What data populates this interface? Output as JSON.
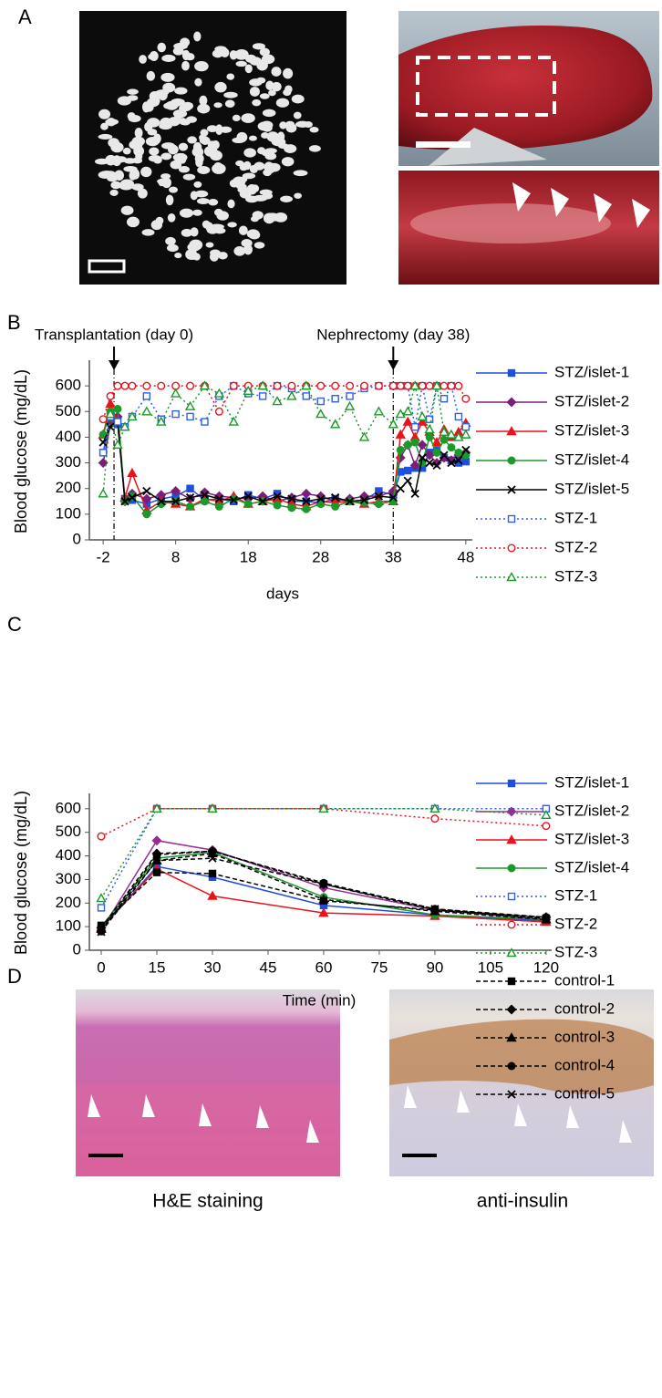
{
  "panel_labels": [
    "A",
    "B",
    "C",
    "D"
  ],
  "captions": [
    "H&E staining",
    "anti-insulin"
  ],
  "chart_data": [
    {
      "type": "line",
      "x_label": "days",
      "y_label": "Blood glucose (mg/dL)",
      "xlim": [
        -3.9,
        48.9
      ],
      "ylim": [
        0,
        700
      ],
      "xticks": [
        -2,
        8,
        18,
        28,
        38,
        48
      ],
      "yticks": [
        0,
        100,
        200,
        300,
        400,
        500,
        600
      ],
      "annotations": [
        {
          "text": "Transplantation (day 0)",
          "x": -0.5
        },
        {
          "text": "Nephrectomy (day 38)",
          "x": 38
        }
      ],
      "x": [
        -2,
        -1,
        0,
        1,
        2,
        4,
        6,
        8,
        10,
        12,
        14,
        16,
        18,
        20,
        22,
        24,
        26,
        28,
        30,
        32,
        34,
        36,
        38,
        39,
        40,
        41,
        42,
        43,
        44,
        45,
        46,
        47,
        48
      ],
      "series": [
        {
          "name": "STZ/islet-1",
          "color": "#1f4fe0",
          "line_style": "solid",
          "marker": "square",
          "open": false,
          "values": [
            340,
            470,
            450,
            160,
            155,
            140,
            160,
            170,
            200,
            155,
            160,
            150,
            175,
            160,
            180,
            150,
            150,
            145,
            160,
            150,
            155,
            190,
            175,
            265,
            270,
            280,
            280,
            340,
            350,
            320,
            310,
            300,
            305
          ]
        },
        {
          "name": "STZ/islet-2",
          "color": "#7b1e7a",
          "line_style": "solid",
          "marker": "diamond",
          "open": false,
          "values": [
            300,
            450,
            480,
            150,
            180,
            160,
            175,
            190,
            160,
            185,
            170,
            165,
            160,
            170,
            150,
            165,
            180,
            170,
            150,
            160,
            170,
            170,
            190,
            320,
            370,
            290,
            370,
            330,
            300,
            320,
            310,
            330,
            340
          ]
        },
        {
          "name": "STZ/islet-3",
          "color": "#e8141c",
          "line_style": "solid",
          "marker": "triangle",
          "open": false,
          "values": [
            410,
            530,
            460,
            165,
            260,
            115,
            150,
            140,
            130,
            160,
            150,
            170,
            140,
            150,
            160,
            140,
            130,
            150,
            145,
            150,
            140,
            150,
            150,
            410,
            460,
            400,
            460,
            420,
            380,
            430,
            400,
            420,
            455
          ]
        },
        {
          "name": "STZ/islet-4",
          "color": "#1a9a2a",
          "line_style": "solid",
          "marker": "circle",
          "open": false,
          "values": [
            410,
            500,
            510,
            150,
            170,
            100,
            140,
            150,
            130,
            150,
            130,
            160,
            140,
            150,
            135,
            125,
            120,
            140,
            130,
            150,
            145,
            140,
            150,
            350,
            370,
            380,
            300,
            400,
            340,
            390,
            360,
            340,
            330
          ]
        },
        {
          "name": "STZ/islet-5",
          "color": "#000000",
          "line_style": "solid",
          "marker": "x",
          "open": false,
          "values": [
            380,
            440,
            460,
            150,
            165,
            190,
            150,
            150,
            165,
            175,
            160,
            155,
            170,
            150,
            170,
            160,
            150,
            160,
            165,
            150,
            155,
            170,
            165,
            200,
            230,
            180,
            320,
            300,
            290,
            330,
            300,
            310,
            350
          ]
        },
        {
          "name": "STZ-1",
          "color": "#2f5fe8",
          "line_style": "dotted",
          "marker": "square",
          "open": true,
          "values": [
            340,
            480,
            460,
            440,
            480,
            560,
            470,
            490,
            480,
            460,
            560,
            600,
            570,
            560,
            600,
            590,
            560,
            540,
            550,
            560,
            590,
            600,
            600,
            600,
            600,
            440,
            600,
            470,
            600,
            550,
            600,
            480,
            440
          ]
        },
        {
          "name": "STZ-2",
          "color": "#e8141c",
          "line_style": "dotted",
          "marker": "circle",
          "open": true,
          "values": [
            470,
            560,
            600,
            600,
            600,
            600,
            600,
            600,
            600,
            600,
            500,
            600,
            600,
            600,
            600,
            600,
            600,
            600,
            600,
            600,
            600,
            600,
            600,
            600,
            600,
            600,
            600,
            600,
            600,
            600,
            600,
            600,
            550
          ]
        },
        {
          "name": "STZ-3",
          "color": "#1a9a2a",
          "line_style": "dotted",
          "marker": "triangle",
          "open": true,
          "values": [
            180,
            490,
            370,
            440,
            480,
            500,
            460,
            570,
            520,
            600,
            570,
            460,
            580,
            600,
            540,
            560,
            600,
            490,
            450,
            520,
            400,
            500,
            450,
            490,
            500,
            600,
            480,
            430,
            600,
            420,
            410,
            400,
            410
          ]
        }
      ]
    },
    {
      "type": "line",
      "x_label": "Time (min)",
      "y_label": "Blood glucose (mg/dL)",
      "xlim": [
        -3.2,
        121.5
      ],
      "ylim": [
        0,
        665
      ],
      "xticks": [
        0,
        15,
        30,
        45,
        60,
        75,
        90,
        105,
        120
      ],
      "yticks": [
        0,
        100,
        200,
        300,
        400,
        500,
        600
      ],
      "x": [
        0,
        15,
        30,
        60,
        90,
        120
      ],
      "series": [
        {
          "name": "STZ/islet-1",
          "color": "#1f4fe0",
          "line_style": "solid",
          "marker": "square",
          "open": false,
          "values": [
            90,
            355,
            310,
            190,
            150,
            125
          ]
        },
        {
          "name": "STZ/islet-2",
          "color": "#9b2a98",
          "line_style": "solid",
          "marker": "diamond",
          "open": false,
          "values": [
            85,
            465,
            425,
            265,
            170,
            130
          ]
        },
        {
          "name": "STZ/islet-3",
          "color": "#e8141c",
          "line_style": "solid",
          "marker": "triangle",
          "open": false,
          "values": [
            95,
            345,
            230,
            158,
            145,
            120
          ]
        },
        {
          "name": "STZ/islet-4",
          "color": "#1a9a2a",
          "line_style": "solid",
          "marker": "circle",
          "open": false,
          "values": [
            100,
            390,
            415,
            225,
            150,
            130
          ]
        },
        {
          "name": "STZ-1",
          "color": "#2f5fe8",
          "line_style": "dotted",
          "marker": "square",
          "open": true,
          "values": [
            180,
            600,
            600,
            600,
            600,
            600
          ]
        },
        {
          "name": "STZ-2",
          "color": "#e8141c",
          "line_style": "dotted",
          "marker": "circle",
          "open": true,
          "values": [
            483,
            600,
            600,
            600,
            558,
            527
          ]
        },
        {
          "name": "STZ-3",
          "color": "#1a9a2a",
          "line_style": "dotted",
          "marker": "triangle",
          "open": true,
          "values": [
            220,
            600,
            600,
            600,
            600,
            573
          ]
        },
        {
          "name": "control-1",
          "color": "#000000",
          "line_style": "dashed",
          "marker": "square",
          "open": false,
          "values": [
            105,
            330,
            325,
            210,
            170,
            135
          ]
        },
        {
          "name": "control-2",
          "color": "#000000",
          "line_style": "dashed",
          "marker": "diamond",
          "open": false,
          "values": [
            95,
            410,
            420,
            280,
            170,
            140
          ]
        },
        {
          "name": "control-3",
          "color": "#000000",
          "line_style": "dashed",
          "marker": "triangle",
          "open": false,
          "values": [
            90,
            380,
            410,
            215,
            165,
            130
          ]
        },
        {
          "name": "control-4",
          "color": "#000000",
          "line_style": "dashed",
          "marker": "circle",
          "open": false,
          "values": [
            80,
            405,
            420,
            285,
            175,
            140
          ]
        },
        {
          "name": "control-5",
          "color": "#000000",
          "line_style": "dashed",
          "marker": "x",
          "open": false,
          "values": [
            78,
            380,
            390,
            280,
            175,
            135
          ]
        }
      ]
    }
  ]
}
